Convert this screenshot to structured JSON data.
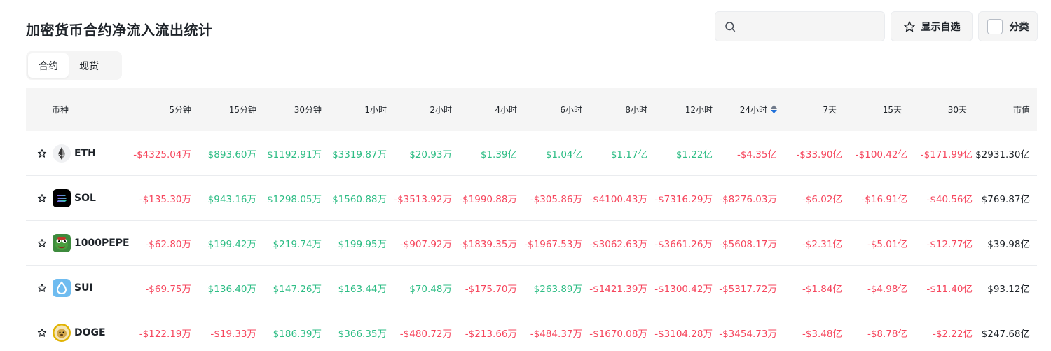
{
  "header": {
    "title": "加密货币合约净流入流出统计",
    "search_placeholder": "",
    "favorites_label": "显示自选",
    "category_label": "分类"
  },
  "tabs": [
    {
      "label": "合约",
      "active": true
    },
    {
      "label": "现货",
      "active": false
    }
  ],
  "columns": [
    "币种",
    "5分钟",
    "15分钟",
    "30分钟",
    "1小时",
    "2小时",
    "4小时",
    "6小时",
    "8小时",
    "12小时",
    "24小时",
    "7天",
    "15天",
    "30天",
    "市值"
  ],
  "sorted_column": "24小时",
  "colors": {
    "positive": "#2ebd85",
    "negative": "#f6465d",
    "text": "#1e2329"
  },
  "rows": [
    {
      "symbol": "ETH",
      "icon": "eth-logo-icon",
      "values": [
        "-$4325.04万",
        "$893.60万",
        "$1192.91万",
        "$3319.87万",
        "$20.93万",
        "$1.39亿",
        "$1.04亿",
        "$1.17亿",
        "$1.22亿",
        "-$4.35亿",
        "-$33.90亿",
        "-$100.42亿",
        "-$171.99亿"
      ],
      "market_cap": "$2931.30亿"
    },
    {
      "symbol": "SOL",
      "icon": "sol-logo-icon",
      "values": [
        "-$135.30万",
        "$943.16万",
        "$1298.05万",
        "$1560.88万",
        "-$3513.92万",
        "-$1990.88万",
        "-$305.86万",
        "-$4100.43万",
        "-$7316.29万",
        "-$8276.03万",
        "-$6.02亿",
        "-$16.91亿",
        "-$40.56亿"
      ],
      "market_cap": "$769.87亿"
    },
    {
      "symbol": "1000PEPE",
      "icon": "pepe-logo-icon",
      "values": [
        "-$62.80万",
        "$199.42万",
        "$219.74万",
        "$199.95万",
        "-$907.92万",
        "-$1839.35万",
        "-$1967.53万",
        "-$3062.63万",
        "-$3661.26万",
        "-$5608.17万",
        "-$2.31亿",
        "-$5.01亿",
        "-$12.77亿"
      ],
      "market_cap": "$39.98亿"
    },
    {
      "symbol": "SUI",
      "icon": "sui-logo-icon",
      "values": [
        "-$69.75万",
        "$136.40万",
        "$147.26万",
        "$163.44万",
        "$70.48万",
        "-$175.70万",
        "$263.89万",
        "-$1421.39万",
        "-$1300.42万",
        "-$5317.72万",
        "-$1.84亿",
        "-$4.98亿",
        "-$11.40亿"
      ],
      "market_cap": "$93.12亿"
    },
    {
      "symbol": "DOGE",
      "icon": "doge-logo-icon",
      "values": [
        "-$122.19万",
        "-$19.33万",
        "$186.39万",
        "$366.35万",
        "-$480.72万",
        "-$213.66万",
        "-$484.37万",
        "-$1670.08万",
        "-$3104.28万",
        "-$3454.73万",
        "-$3.48亿",
        "-$8.78亿",
        "-$2.22亿"
      ],
      "market_cap": "$247.68亿"
    }
  ]
}
